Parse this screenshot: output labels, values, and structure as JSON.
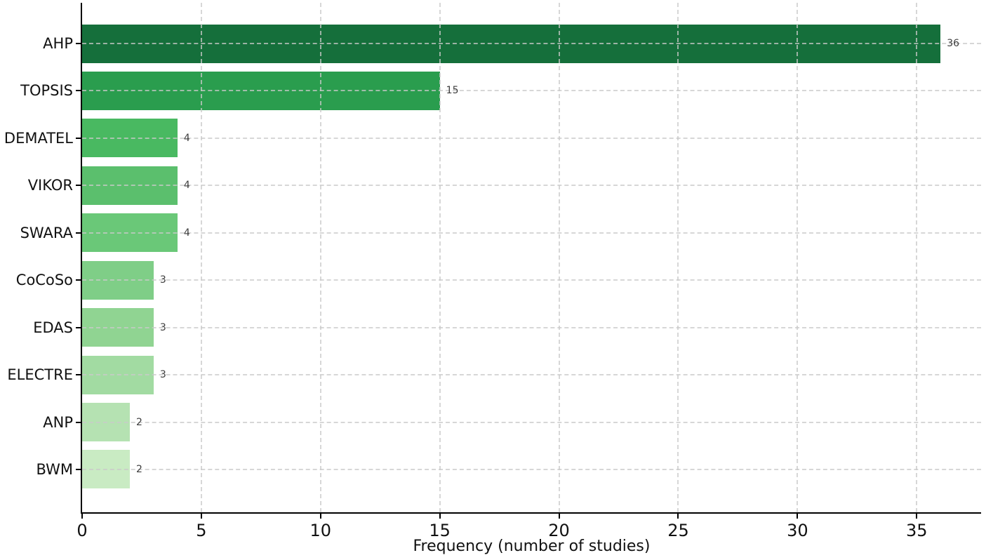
{
  "chart_data": {
    "type": "bar",
    "orientation": "horizontal",
    "title": "",
    "xlabel": "Frequency (number of studies)",
    "ylabel": "",
    "categories": [
      "AHP",
      "TOPSIS",
      "DEMATEL",
      "VIKOR",
      "SWARA",
      "CoCoSo",
      "EDAS",
      "ELECTRE",
      "ANP",
      "BWM"
    ],
    "values": [
      36,
      15,
      4,
      4,
      4,
      3,
      3,
      3,
      2,
      2
    ],
    "value_labels": [
      "36",
      "15",
      "4",
      "4",
      "4",
      "3",
      "3",
      "3",
      "2",
      "2"
    ],
    "bar_colors": [
      "#156f3b",
      "#2a9d4e",
      "#49b961",
      "#5bbf6d",
      "#6ac878",
      "#7fce87",
      "#90d492",
      "#a2dba2",
      "#b5e2b2",
      "#c9ebc3"
    ],
    "x_ticks": [
      0,
      5,
      10,
      15,
      20,
      25,
      30,
      35
    ],
    "xlim": [
      0,
      37.7
    ],
    "grid": "dashed",
    "grid_color": "#c9c9c9",
    "axis_color": "#000000",
    "value_label_color": "#3d3d3d",
    "background_color": "#ffffff",
    "legend": "none"
  }
}
